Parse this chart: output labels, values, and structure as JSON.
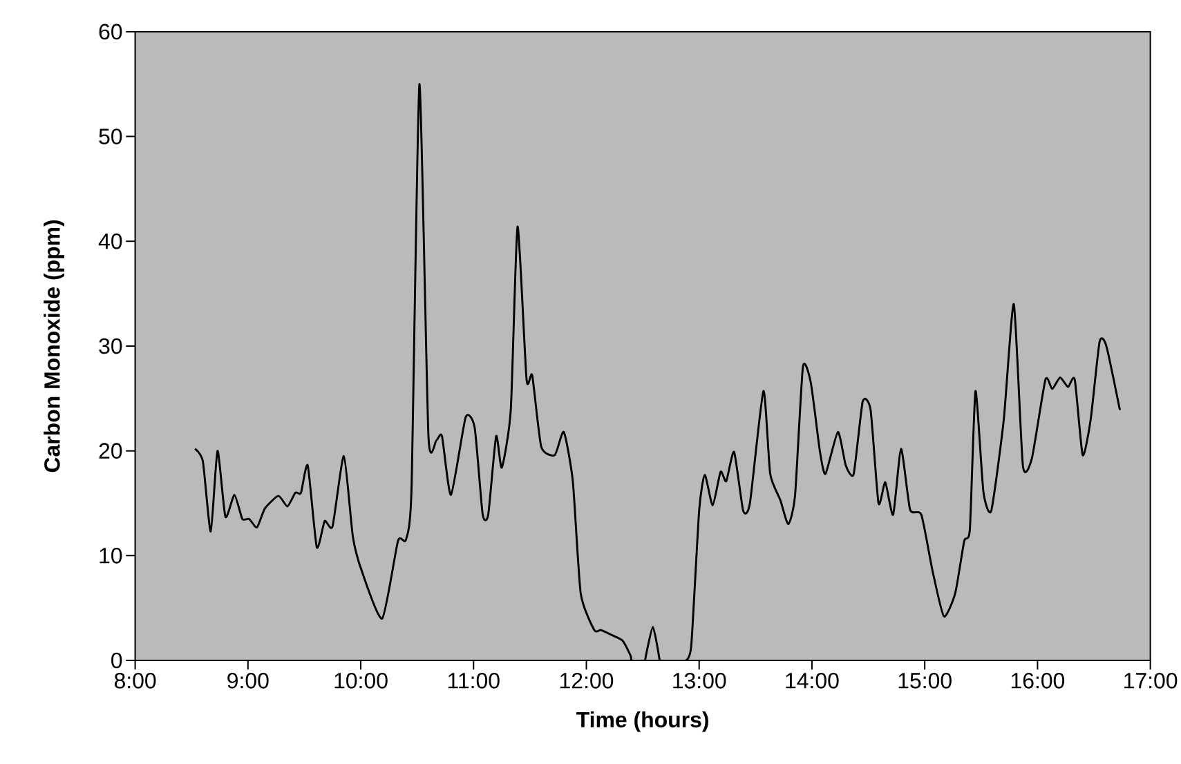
{
  "chart_data": {
    "type": "line",
    "xlabel": "Time (hours)",
    "ylabel": "Carbon Monoxide (ppm)",
    "xlim": [
      8,
      17
    ],
    "ylim": [
      0,
      60
    ],
    "xticks": [
      {
        "value": 8,
        "label": "8:00"
      },
      {
        "value": 9,
        "label": "9:00"
      },
      {
        "value": 10,
        "label": "10:00"
      },
      {
        "value": 11,
        "label": "11:00"
      },
      {
        "value": 12,
        "label": "12:00"
      },
      {
        "value": 13,
        "label": "13:00"
      },
      {
        "value": 14,
        "label": "14:00"
      },
      {
        "value": 15,
        "label": "15:00"
      },
      {
        "value": 16,
        "label": "16:00"
      },
      {
        "value": 17,
        "label": "17:00"
      }
    ],
    "yticks": [
      0,
      10,
      20,
      30,
      40,
      50,
      60
    ],
    "marker": "none",
    "line_style": "solid",
    "series": [
      {
        "color": "#000000",
        "x": [
          8.53,
          8.6,
          8.67,
          8.73,
          8.8,
          8.88,
          8.95,
          9.01,
          9.08,
          9.15,
          9.27,
          9.35,
          9.42,
          9.47,
          9.53,
          9.61,
          9.68,
          9.75,
          9.85,
          9.93,
          10.01,
          10.19,
          10.33,
          10.4,
          10.45,
          10.52,
          10.6,
          10.67,
          10.72,
          10.8,
          10.93,
          11.01,
          11.08,
          11.13,
          11.2,
          11.25,
          11.33,
          11.39,
          11.47,
          11.52,
          11.6,
          11.72,
          11.8,
          11.88,
          11.95,
          12.07,
          12.13,
          12.23,
          12.32,
          12.39,
          12.4,
          12.46,
          12.52,
          12.59,
          12.65,
          12.7,
          12.88,
          12.93,
          13.0,
          13.05,
          13.12,
          13.19,
          13.24,
          13.31,
          13.39,
          13.45,
          13.57,
          13.63,
          13.72,
          13.79,
          13.85,
          13.92,
          13.99,
          14.07,
          14.12,
          14.23,
          14.3,
          14.37,
          14.45,
          14.52,
          14.59,
          14.65,
          14.72,
          14.79,
          14.87,
          14.97,
          15.07,
          15.17,
          15.27,
          15.35,
          15.4,
          15.45,
          15.52,
          15.59,
          15.7,
          15.79,
          15.87,
          15.95,
          16.07,
          16.13,
          16.2,
          16.27,
          16.33,
          16.4,
          16.47,
          16.55,
          16.61,
          16.73
        ],
        "values": [
          20.2,
          19,
          12.3,
          20,
          13.7,
          15.8,
          13.5,
          13.5,
          12.7,
          14.5,
          15.7,
          14.7,
          16,
          16,
          18.6,
          10.8,
          13.3,
          12.8,
          19.5,
          11.8,
          8.5,
          4,
          11.4,
          11.5,
          16.4,
          55,
          21.4,
          21,
          21.4,
          15.8,
          23.2,
          22.2,
          14,
          13.9,
          21.4,
          18.4,
          23.9,
          41.4,
          26.8,
          27.2,
          20.4,
          19.6,
          21.8,
          17.1,
          6.4,
          2.9,
          2.9,
          2.4,
          1.9,
          0.5,
          0,
          null,
          0,
          3.2,
          0,
          null,
          0,
          1.4,
          14.3,
          17.7,
          14.8,
          18,
          17.1,
          19.9,
          14.3,
          15,
          25.7,
          17.8,
          15.3,
          13,
          15.7,
          28,
          26.5,
          20,
          17.8,
          21.8,
          18.6,
          17.8,
          24.7,
          23.9,
          15,
          17,
          13.9,
          20.2,
          14.4,
          13.9,
          8.5,
          4.2,
          6.4,
          11.4,
          12.5,
          25.7,
          16.1,
          14.3,
          22.9,
          34,
          18.6,
          19.3,
          26.8,
          25.9,
          27,
          26.1,
          26.8,
          19.6,
          22.9,
          30.4,
          30,
          23.9
        ]
      }
    ]
  }
}
